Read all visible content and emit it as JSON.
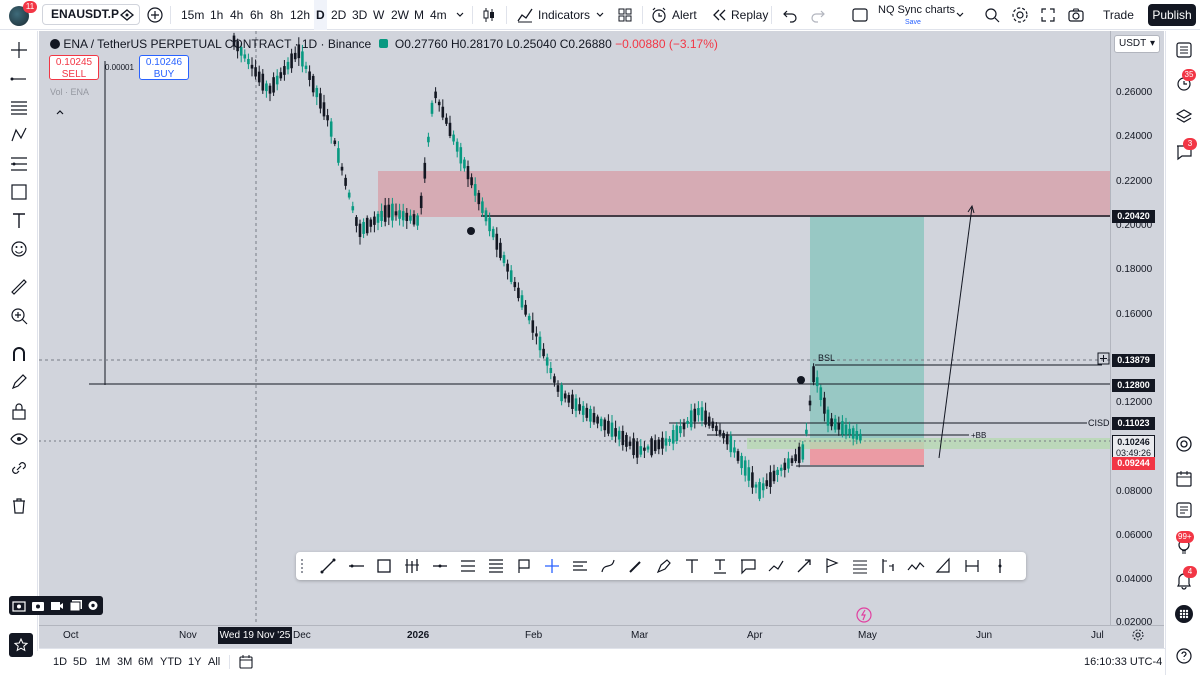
{
  "app": {
    "avatar_badge": "11",
    "symbol": "ENAUSDT.P",
    "intervals": [
      "15m",
      "1h",
      "4h",
      "6h",
      "8h",
      "12h",
      "D",
      "2D",
      "3D",
      "W",
      "2W",
      "M",
      "4m"
    ],
    "active_interval": "D",
    "indicators_label": "Indicators",
    "alert_label": "Alert",
    "replay_label": "Replay",
    "layout_name": "NQ Sync charts",
    "layout_status": "Save",
    "trade_label": "Trade",
    "publish_label": "Publish",
    "colors": {
      "accent": "#2962ff",
      "down": "#f23645",
      "up": "#089981",
      "dark": "#131722"
    }
  },
  "legend": {
    "title": "ENA / TetherUS PERPETUAL CONTRACT · 1D · Binance",
    "ohlc": "O0.27760 H0.28170 L0.25040 C0.26880",
    "change": "−0.00880 (−3.17%)",
    "sell_price": "0.10245",
    "sell_label": "SELL",
    "spread": "0.00001",
    "buy_price": "0.10246",
    "buy_label": "BUY",
    "volume_label": "Vol · ENA"
  },
  "price_scale": {
    "currency": "USDT",
    "labels": [
      "0.26000",
      "0.24000",
      "0.22000",
      "0.20000",
      "0.18000",
      "0.16000",
      "0.12000",
      "0.08000",
      "0.06000",
      "0.04000",
      "0.02000"
    ],
    "tags": [
      {
        "value": "0.20420",
        "type": "line"
      },
      {
        "value": "0.13879",
        "type": "line"
      },
      {
        "value": "0.12800",
        "type": "line"
      },
      {
        "value": "0.11023",
        "type": "line"
      },
      {
        "value": "0.10246",
        "type": "current"
      },
      {
        "value": "03:49:26",
        "type": "countdown"
      },
      {
        "value": "0.09244",
        "type": "stop"
      }
    ]
  },
  "time_scale": {
    "labels": [
      "Oct",
      "Nov",
      "Dec",
      "2026",
      "Feb",
      "Mar",
      "Apr",
      "May",
      "Jun",
      "Jul"
    ],
    "crosshair_date": "Wed 19 Nov '25"
  },
  "annotations": {
    "bsl": "BSL",
    "cisd": "CISD",
    "plus_bb": "+BB"
  },
  "bottom": {
    "ranges": [
      "1D",
      "5D",
      "1M",
      "3M",
      "6M",
      "YTD",
      "1Y",
      "All"
    ],
    "clock": "16:10:33 UTC-4"
  },
  "right_badges": {
    "watchlist": "35",
    "chat": "3",
    "ideas": "99+",
    "notifications": "4"
  }
}
